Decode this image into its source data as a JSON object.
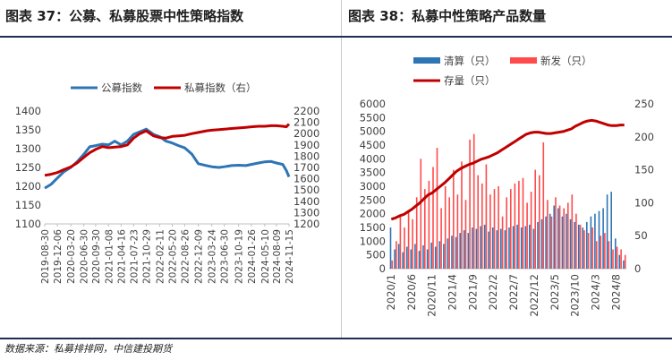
{
  "titles": {
    "left": "图表 37：公募、私募股票中性策略指数",
    "right": "图表 38：私募中性策略产品数量"
  },
  "source": "数据来源：私募排排网，中信建投期货",
  "colors": {
    "public_line": "#2e75b6",
    "private_line": "#c00000",
    "liquidated_bar": "#2e75b6",
    "new_bar": "#ff4b4b",
    "stock_line": "#c00000",
    "rule": "#1f2d53"
  },
  "chart_data": [
    {
      "type": "line",
      "legend_position": "top",
      "grid": false,
      "x_tick_labels": [
        "2019-08-30",
        "2019-12-06",
        "2020-03-20",
        "2020-06-30",
        "2020-09-30",
        "2021-01-08",
        "2021-04-16",
        "2021-07-23",
        "2021-10-29",
        "2022-02-11",
        "2022-05-20",
        "2022-08-26",
        "2022-12-09",
        "2023-03-24",
        "2023-06-30",
        "2023-10-19",
        "2024-01-26",
        "2024-05-10",
        "2024-08-09",
        "2024-11-15"
      ],
      "y_left_ticks": [
        1100,
        1150,
        1200,
        1250,
        1300,
        1350,
        1400
      ],
      "y_left_range": [
        1100,
        1400
      ],
      "y_right_ticks": [
        1200,
        1300,
        1400,
        1500,
        1600,
        1700,
        1800,
        1900,
        2000,
        2100,
        2200
      ],
      "y_right_range": [
        1200,
        2200
      ],
      "series": [
        {
          "name": "公募指数",
          "axis": "left",
          "x": [
            "2019-08-30",
            "2019-10-18",
            "2019-12-06",
            "2020-01-24",
            "2020-03-20",
            "2020-05-08",
            "2020-06-30",
            "2020-08-14",
            "2020-09-30",
            "2020-11-20",
            "2021-01-08",
            "2021-02-26",
            "2021-04-16",
            "2021-06-04",
            "2021-07-23",
            "2021-09-10",
            "2021-10-29",
            "2021-12-24",
            "2022-02-11",
            "2022-04-01",
            "2022-05-20",
            "2022-07-08",
            "2022-08-26",
            "2022-10-21",
            "2022-12-09",
            "2023-02-10",
            "2023-03-24",
            "2023-05-19",
            "2023-06-30",
            "2023-08-25",
            "2023-10-19",
            "2023-12-15",
            "2024-01-26",
            "2024-03-22",
            "2024-05-10",
            "2024-06-28",
            "2024-08-09",
            "2024-09-27",
            "2024-10-25",
            "2024-11-15"
          ],
          "values": [
            1195,
            1205,
            1222,
            1238,
            1250,
            1265,
            1285,
            1305,
            1308,
            1312,
            1310,
            1320,
            1310,
            1320,
            1338,
            1345,
            1352,
            1338,
            1332,
            1320,
            1315,
            1308,
            1302,
            1285,
            1260,
            1255,
            1252,
            1250,
            1252,
            1255,
            1256,
            1255,
            1258,
            1262,
            1265,
            1266,
            1262,
            1258,
            1242,
            1225
          ]
        },
        {
          "name": "私募指数（右）",
          "axis": "right",
          "x": [
            "2019-08-30",
            "2019-10-18",
            "2019-12-06",
            "2020-01-24",
            "2020-03-20",
            "2020-05-08",
            "2020-06-30",
            "2020-08-14",
            "2020-09-30",
            "2020-11-20",
            "2021-01-08",
            "2021-02-26",
            "2021-04-16",
            "2021-06-04",
            "2021-07-23",
            "2021-09-10",
            "2021-10-29",
            "2021-12-24",
            "2022-02-11",
            "2022-04-01",
            "2022-05-20",
            "2022-07-08",
            "2022-08-26",
            "2022-10-21",
            "2022-12-09",
            "2023-02-10",
            "2023-03-24",
            "2023-05-19",
            "2023-06-30",
            "2023-08-25",
            "2023-10-19",
            "2023-12-15",
            "2024-01-26",
            "2024-03-22",
            "2024-05-10",
            "2024-06-28",
            "2024-08-09",
            "2024-09-27",
            "2024-10-25",
            "2024-11-15"
          ],
          "values": [
            1630,
            1640,
            1655,
            1680,
            1705,
            1740,
            1790,
            1830,
            1860,
            1885,
            1875,
            1880,
            1885,
            1900,
            1960,
            2000,
            2025,
            1980,
            1965,
            1960,
            1975,
            1980,
            1985,
            2000,
            2010,
            2025,
            2030,
            2035,
            2040,
            2045,
            2050,
            2055,
            2060,
            2065,
            2065,
            2070,
            2070,
            2065,
            2060,
            2085
          ]
        }
      ]
    },
    {
      "type": "bar",
      "legend_position": "top",
      "grid": false,
      "x_tick_labels": [
        "2020/1",
        "2020/6",
        "2020/11",
        "2021/4",
        "2021/9",
        "2022/2",
        "2022/7",
        "2022/12",
        "2023/5",
        "2023/10",
        "2024/3",
        "2024/8"
      ],
      "categories": [
        "2020/1",
        "2020/2",
        "2020/3",
        "2020/4",
        "2020/5",
        "2020/6",
        "2020/7",
        "2020/8",
        "2020/9",
        "2020/10",
        "2020/11",
        "2020/12",
        "2021/1",
        "2021/2",
        "2021/3",
        "2021/4",
        "2021/5",
        "2021/6",
        "2021/7",
        "2021/8",
        "2021/9",
        "2021/10",
        "2021/11",
        "2021/12",
        "2022/1",
        "2022/2",
        "2022/3",
        "2022/4",
        "2022/5",
        "2022/6",
        "2022/7",
        "2022/8",
        "2022/9",
        "2022/10",
        "2022/11",
        "2022/12",
        "2023/1",
        "2023/2",
        "2023/3",
        "2023/4",
        "2023/5",
        "2023/6",
        "2023/7",
        "2023/8",
        "2023/9",
        "2023/10",
        "2023/11",
        "2023/12",
        "2024/1",
        "2024/2",
        "2024/3",
        "2024/4",
        "2024/5",
        "2024/6",
        "2024/7",
        "2024/8",
        "2024/9",
        "2024/10"
      ],
      "y_left_ticks": [
        0,
        500,
        1000,
        1500,
        2000,
        2500,
        3000,
        3500,
        4000,
        4500,
        5000,
        5500,
        6000
      ],
      "y_left_range": [
        0,
        6000
      ],
      "y_right_ticks": [
        0,
        50,
        100,
        150,
        200,
        250
      ],
      "y_right_range": [
        0,
        250
      ],
      "series": [
        {
          "name": "清算（只）",
          "axis": "left",
          "values": [
            1500,
            700,
            900,
            600,
            800,
            700,
            900,
            650,
            850,
            700,
            950,
            800,
            1000,
            900,
            1100,
            1200,
            1150,
            1300,
            1400,
            1300,
            1500,
            1450,
            1550,
            1600,
            1350,
            1500,
            1400,
            1450,
            1400,
            1500,
            1550,
            1600,
            1500,
            1550,
            1600,
            1450,
            1700,
            1800,
            1900,
            2000,
            2300,
            2200,
            1900,
            2000,
            1800,
            1700,
            1600,
            1500,
            1700,
            1900,
            2000,
            2100,
            2200,
            2700,
            2800,
            1100,
            500,
            300
          ]
        },
        {
          "name": "新发（只）",
          "axis": "left",
          "values": [
            300,
            1000,
            1900,
            1500,
            2100,
            1800,
            2600,
            4000,
            2900,
            3200,
            3700,
            4400,
            2200,
            3000,
            2600,
            3600,
            2700,
            3900,
            2500,
            4700,
            4900,
            3400,
            3100,
            3800,
            2700,
            2900,
            3000,
            1900,
            2600,
            2900,
            3100,
            3200,
            3300,
            2400,
            2800,
            3600,
            3400,
            4600,
            2500,
            1900,
            2600,
            2300,
            2200,
            2400,
            2700,
            2000,
            1600,
            1400,
            1300,
            1500,
            1000,
            1200,
            1300,
            1000,
            700,
            800,
            700,
            500
          ]
        },
        {
          "name": "存量（只）",
          "axis": "right",
          "type": "line",
          "values": [
            75,
            77,
            80,
            82,
            86,
            90,
            95,
            100,
            106,
            112,
            115,
            120,
            125,
            130,
            136,
            142,
            148,
            152,
            155,
            158,
            160,
            163,
            166,
            168,
            170,
            173,
            176,
            180,
            184,
            188,
            192,
            196,
            200,
            204,
            206,
            207,
            207,
            206,
            205,
            205,
            206,
            207,
            208,
            210,
            212,
            216,
            219,
            222,
            224,
            225,
            224,
            222,
            220,
            218,
            217,
            217,
            218,
            218
          ]
        }
      ]
    }
  ]
}
